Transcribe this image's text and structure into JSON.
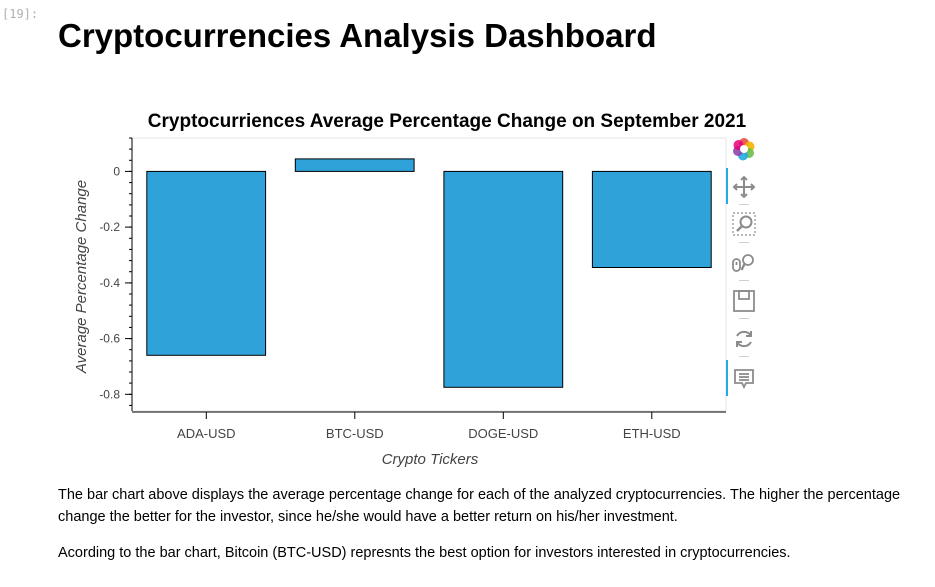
{
  "cell": {
    "prompt": "[19]:"
  },
  "page": {
    "title": "Cryptocurrencies Analysis Dashboard"
  },
  "chart_data": {
    "type": "bar",
    "title": "Cryptocurriences Average Percentage Change on September 2021",
    "xlabel": "Crypto Tickers",
    "ylabel": "Average Percentage Change",
    "categories": [
      "ADA-USD",
      "BTC-USD",
      "DOGE-USD",
      "ETH-USD"
    ],
    "values": [
      -0.66,
      0.045,
      -0.775,
      -0.345
    ],
    "ylim": [
      -0.86,
      0.12
    ],
    "yticks": [
      0,
      -0.2,
      -0.4,
      -0.6,
      -0.8
    ],
    "ytick_labels": [
      "0",
      "-0.2",
      "-0.4",
      "-0.6",
      "-0.8"
    ],
    "bar_color": "#30a2da",
    "bar_edge_color": "#000000",
    "grid": false,
    "legend": "none"
  },
  "toolbar": {
    "tools": [
      {
        "name": "bokeh-logo-icon",
        "interactable": false
      },
      {
        "name": "pan-tool-icon",
        "interactable": true
      },
      {
        "name": "box-zoom-tool-icon",
        "interactable": true
      },
      {
        "name": "wheel-zoom-tool-icon",
        "interactable": true
      },
      {
        "name": "save-tool-icon",
        "interactable": true
      },
      {
        "name": "reset-tool-icon",
        "interactable": true
      },
      {
        "name": "hover-tool-icon",
        "interactable": true
      }
    ],
    "accent_color": "#26aae1"
  },
  "text": {
    "paragraph_1": "The bar chart above displays the average percentage change for each of the analyzed cryptocurrencies. The higher the percentage change the better for the investor, since he/she would have a better return on his/her investment.",
    "paragraph_2": "Acording to the bar chart, Bitcoin (BTC-USD) represnts the best option for investors interested in cryptocurrencies."
  }
}
